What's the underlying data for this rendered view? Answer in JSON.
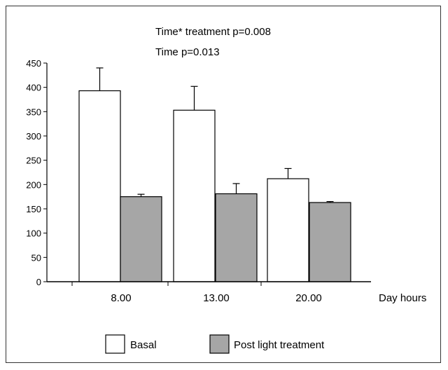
{
  "chart_data": {
    "type": "bar",
    "annotations": [
      "Time* treatment p=0.008",
      "Time p=0.013"
    ],
    "xlabel": "Day hours",
    "ylabel": "",
    "categories": [
      "8.00",
      "13.00",
      "20.00"
    ],
    "ylim": [
      0,
      450
    ],
    "yticks": [
      0,
      50,
      100,
      150,
      200,
      250,
      300,
      350,
      400,
      450
    ],
    "grid": false,
    "legend_position": "bottom",
    "series": [
      {
        "name": "Basal",
        "values": [
          393,
          353,
          212
        ],
        "errors": [
          47,
          49,
          21
        ],
        "color": "#ffffff"
      },
      {
        "name": "Post light treatment",
        "values": [
          175,
          181,
          163
        ],
        "errors": [
          5,
          21,
          2
        ],
        "color": "#a6a6a6"
      }
    ]
  }
}
